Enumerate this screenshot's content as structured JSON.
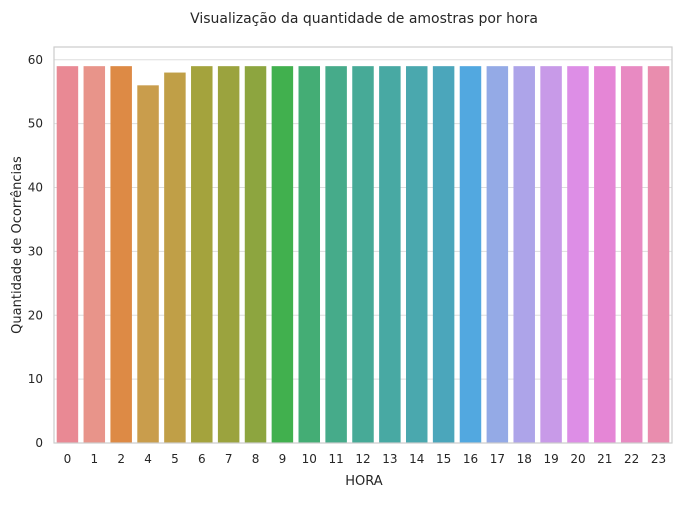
{
  "chart_data": {
    "type": "bar",
    "title": "Visualização da quantidade de amostras por hora",
    "xlabel": "HORA",
    "ylabel": "Quantidade de Ocorrências",
    "categories": [
      "0",
      "1",
      "2",
      "4",
      "5",
      "6",
      "7",
      "8",
      "9",
      "10",
      "11",
      "12",
      "13",
      "14",
      "15",
      "16",
      "17",
      "18",
      "19",
      "20",
      "21",
      "22",
      "23"
    ],
    "values": [
      59,
      59,
      59,
      56,
      58,
      59,
      59,
      59,
      59,
      59,
      59,
      59,
      59,
      59,
      59,
      59,
      59,
      59,
      59,
      59,
      59,
      59,
      59
    ],
    "ylim": [
      0,
      62
    ],
    "yticks": [
      0,
      10,
      20,
      30,
      40,
      50,
      60
    ],
    "grid": true,
    "legend": "none",
    "colors": [
      "#e98994",
      "#e8948a",
      "#dd8a45",
      "#c99d4c",
      "#c09f47",
      "#a4a33d",
      "#9ba33e",
      "#8da53f",
      "#41b04e",
      "#44ad75",
      "#46ab8a",
      "#47aa97",
      "#48a9a3",
      "#4aa8ae",
      "#4ba6bb",
      "#52a8e0",
      "#94aae6",
      "#ada4e9",
      "#c89ae8",
      "#dd8ee6",
      "#e586d6",
      "#e88ac2",
      "#e98dae"
    ]
  }
}
